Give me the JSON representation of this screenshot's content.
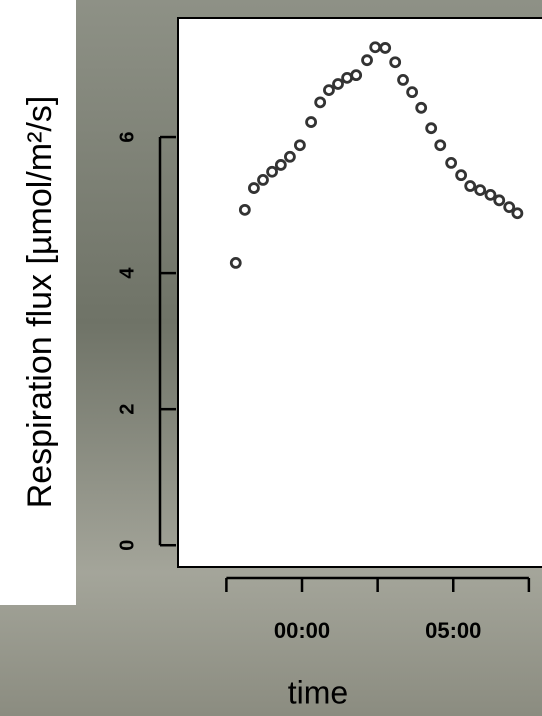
{
  "chart_data": {
    "type": "scatter",
    "ylabel": "Respiration flux [µmol/m²/s]",
    "xlabel": "time",
    "x": [
      -2.19,
      -1.89,
      -1.59,
      -1.29,
      -0.99,
      -0.7,
      -0.4,
      -0.07,
      0.3,
      0.6,
      0.89,
      1.19,
      1.49,
      1.79,
      2.15,
      2.42,
      2.75,
      3.08,
      3.34,
      3.64,
      3.94,
      4.27,
      4.57,
      4.93,
      5.26,
      5.56,
      5.89,
      6.23,
      6.52,
      6.85,
      7.12
    ],
    "values": [
      4.15,
      4.93,
      5.25,
      5.37,
      5.49,
      5.59,
      5.71,
      5.88,
      6.22,
      6.51,
      6.69,
      6.78,
      6.87,
      6.91,
      7.13,
      7.32,
      7.31,
      7.1,
      6.84,
      6.66,
      6.43,
      6.13,
      5.88,
      5.62,
      5.44,
      5.28,
      5.22,
      5.15,
      5.07,
      4.97,
      4.88
    ],
    "color": "#333333",
    "xlim": [
      -4.1,
      8.0
    ],
    "ylim": [
      -0.32,
      7.75
    ],
    "xticks": [
      {
        "value": -2.5,
        "label": null
      },
      {
        "value": 0,
        "label": "00:00"
      },
      {
        "value": 2.5,
        "label": null
      },
      {
        "value": 5,
        "label": "05:00"
      },
      {
        "value": 7.5,
        "label": null
      }
    ],
    "yticks": [
      0,
      2,
      4,
      6
    ]
  }
}
